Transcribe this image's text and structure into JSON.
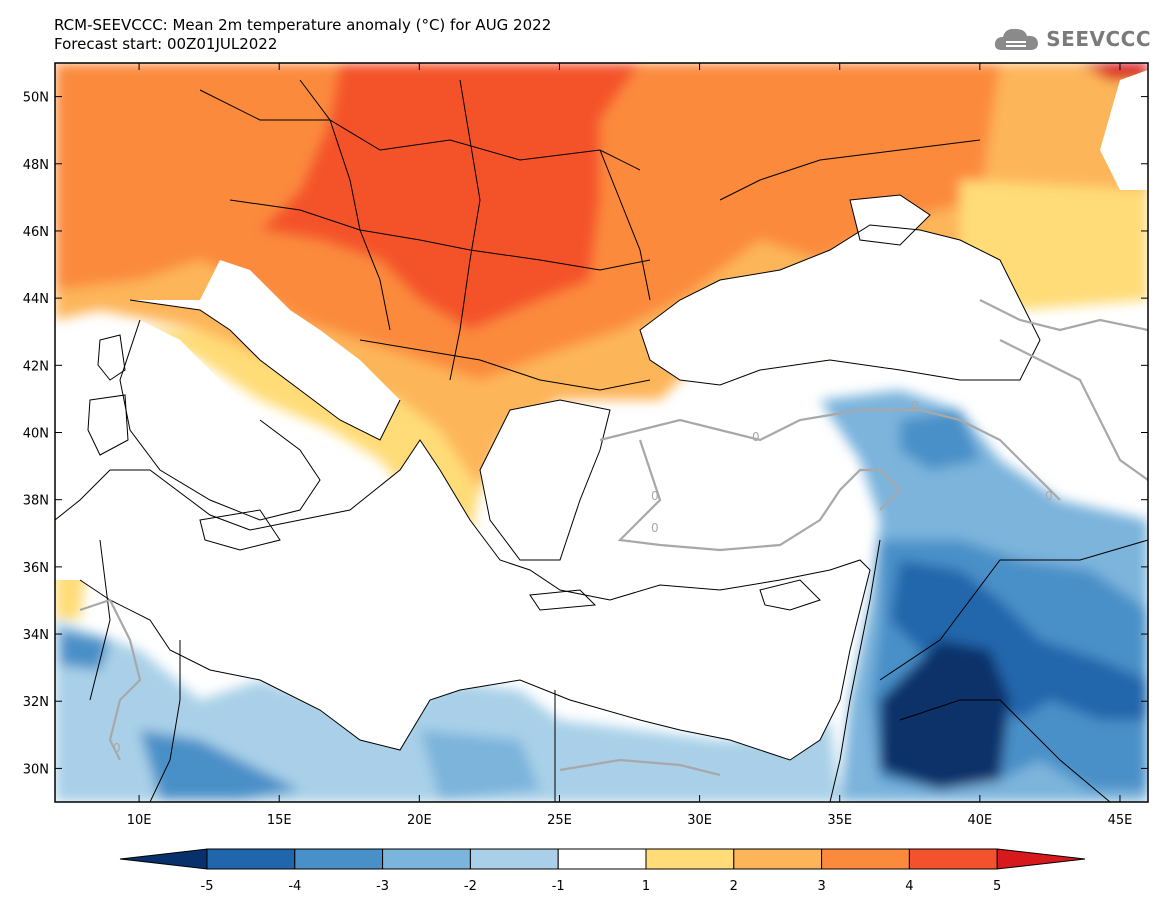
{
  "header": {
    "title_line1": "RCM-SEEVCCC: Mean 2m temperature anomaly (°C) for AUG 2022",
    "title_line2": "Forecast start: 00Z01JUL2022"
  },
  "logo": {
    "text": "SEEVCCC",
    "icon": "cloud-logo-icon"
  },
  "map": {
    "lat_labels": [
      "50N",
      "48N",
      "46N",
      "44N",
      "42N",
      "40N",
      "38N",
      "36N",
      "34N",
      "32N",
      "30N"
    ],
    "lon_labels": [
      "10E",
      "15E",
      "20E",
      "25E",
      "30E",
      "35E",
      "40E",
      "45E"
    ],
    "lon_range": [
      7,
      46
    ],
    "lat_range": [
      29,
      51
    ],
    "contour_label": "0"
  },
  "colorbar": {
    "ticks": [
      "-5",
      "-4",
      "-3",
      "-2",
      "-1",
      "1",
      "2",
      "3",
      "4",
      "5"
    ],
    "colors": [
      "#08306b",
      "#2166ac",
      "#4a90c8",
      "#7bb4dc",
      "#a9d0e8",
      "#ffffff",
      "#ffdc78",
      "#fdb55a",
      "#fb8a3c",
      "#f4522c",
      "#d7191c"
    ]
  }
}
